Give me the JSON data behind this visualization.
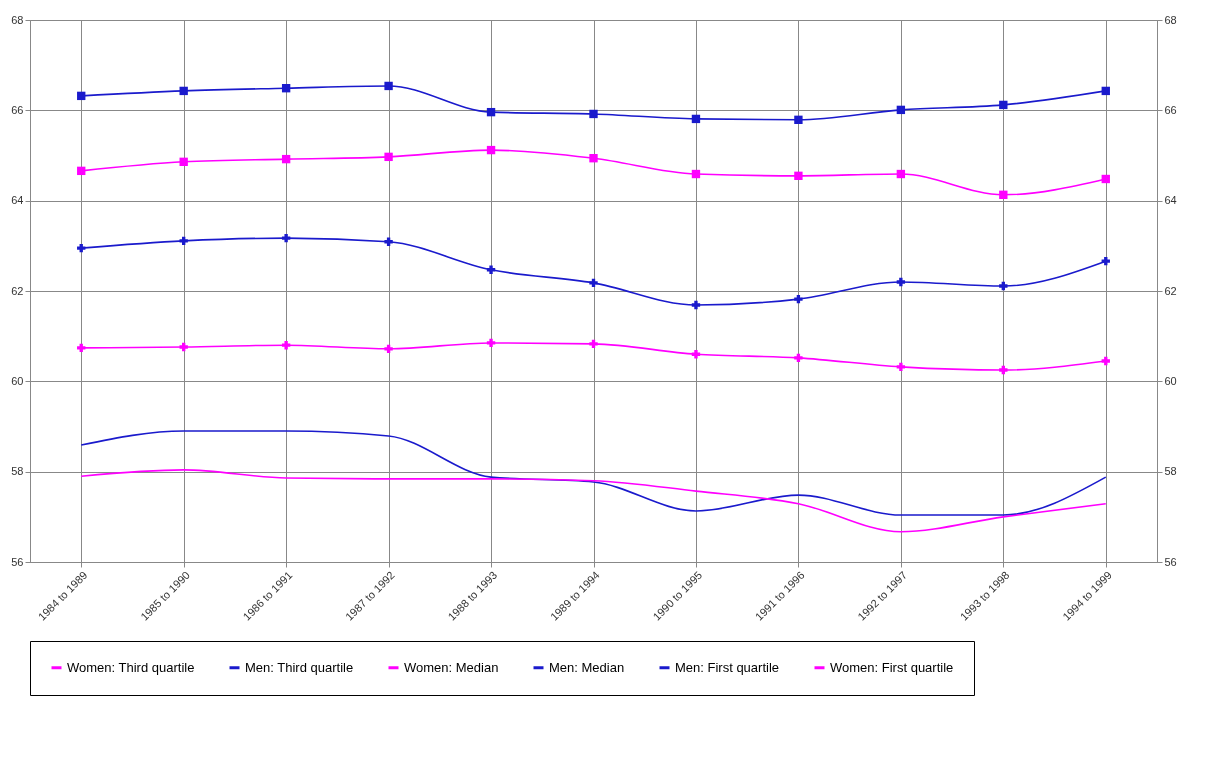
{
  "chart_data": {
    "type": "line",
    "categories": [
      "1984 to 1989",
      "1985 to 1990",
      "1986 to 1991",
      "1987 to 1992",
      "1988 to 1993",
      "1989 to 1994",
      "1990 to 1995",
      "1991 to 1996",
      "1992 to 1997",
      "1993 to 1998",
      "1994 to 1999"
    ],
    "series": [
      {
        "name": "Women: Third quartile",
        "color": "#ff00ff",
        "marker": "square",
        "values": [
          64.66,
          64.86,
          64.92,
          64.97,
          65.12,
          64.94,
          64.59,
          64.55,
          64.59,
          64.13,
          64.48
        ]
      },
      {
        "name": "Men: Third quartile",
        "color": "#1a1acc",
        "marker": "square",
        "values": [
          66.32,
          66.43,
          66.49,
          66.54,
          65.96,
          65.92,
          65.81,
          65.79,
          66.01,
          66.12,
          66.43
        ]
      },
      {
        "name": "Women: Median",
        "color": "#ff00ff",
        "marker": "cross",
        "values": [
          60.74,
          60.76,
          60.8,
          60.72,
          60.85,
          60.83,
          60.6,
          60.52,
          60.32,
          60.25,
          60.45
        ]
      },
      {
        "name": "Men: Median",
        "color": "#1a1acc",
        "marker": "cross",
        "values": [
          62.95,
          63.11,
          63.17,
          63.09,
          62.47,
          62.18,
          61.69,
          61.82,
          62.2,
          62.11,
          62.66
        ]
      },
      {
        "name": "Men: First quartile",
        "color": "#1a1acc",
        "marker": "none",
        "values": [
          58.59,
          58.9,
          58.9,
          58.79,
          57.88,
          57.77,
          57.13,
          57.48,
          57.04,
          57.04,
          57.88
        ]
      },
      {
        "name": "Women: First quartile",
        "color": "#ff00ff",
        "marker": "none",
        "values": [
          57.9,
          58.04,
          57.86,
          57.84,
          57.84,
          57.8,
          57.57,
          57.29,
          56.67,
          57.0,
          57.29
        ]
      }
    ],
    "ylim": [
      56,
      68
    ],
    "yticks": [
      56,
      58,
      60,
      62,
      64,
      66,
      68
    ],
    "y2lim": [
      56,
      68
    ],
    "y2ticks": [
      56,
      58,
      60,
      62,
      64,
      66,
      68
    ],
    "grid": true,
    "legend": "bottom",
    "line_style": "solid"
  }
}
